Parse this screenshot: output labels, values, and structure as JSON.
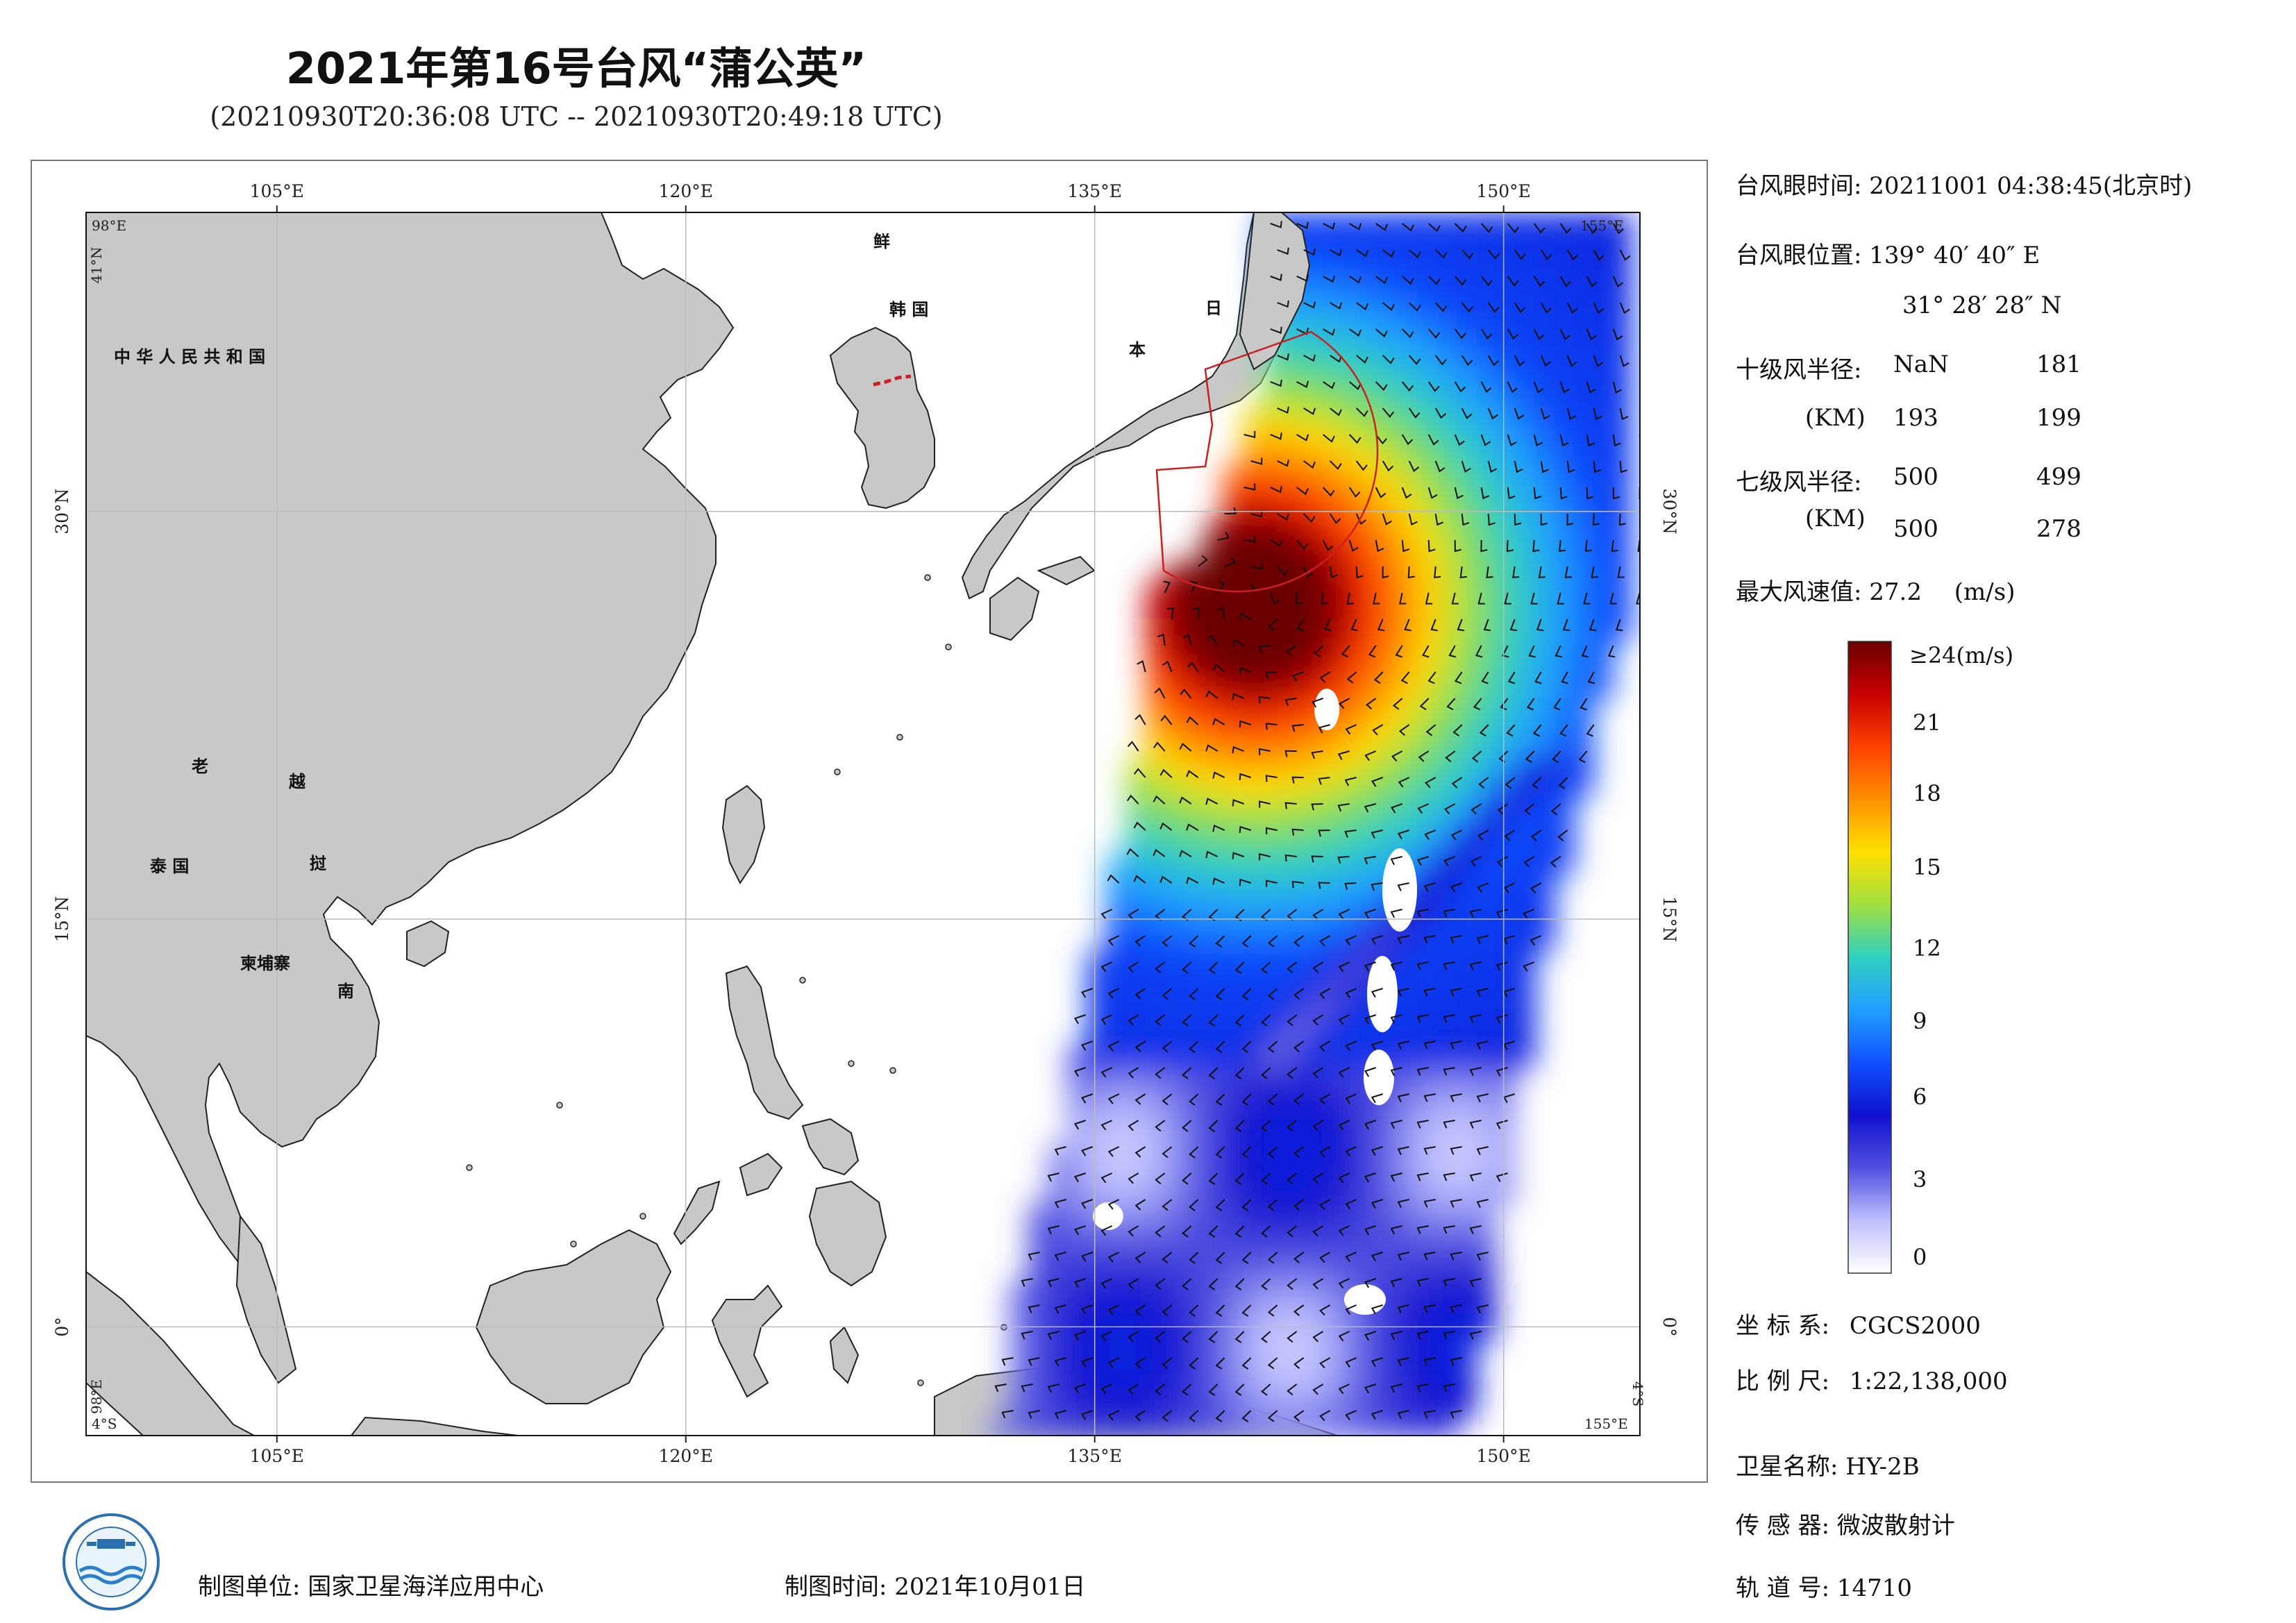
{
  "header": {
    "title": "2021年第16号台风“蒲公英”",
    "subtitle": "(20210930T20:36:08 UTC -- 20210930T20:49:18 UTC)"
  },
  "map": {
    "lon_ticks_top": [
      "105°E",
      "120°E",
      "135°E",
      "150°E"
    ],
    "lon_ticks_bottom": [
      "105°E",
      "120°E",
      "135°E",
      "150°E"
    ],
    "lat_ticks_left": [
      "30°N",
      "15°N",
      "0°"
    ],
    "lat_ticks_right": [
      "30°N",
      "15°N",
      "0°"
    ],
    "corner_labels": {
      "top_left_lon": "98°E",
      "top_left_lat": "41°N",
      "top_right_lon": "155°E",
      "bottom_left_lon": "98°E",
      "bottom_left_lat": "4°S",
      "bottom_right_lon": "155°E",
      "bottom_right_lat": "4°S"
    },
    "country_labels": [
      "中 华 人 民 共 和 国",
      "鲜",
      "韩 国",
      "日",
      "本",
      "老",
      "越",
      "泰 国",
      "挝",
      "柬埔寨",
      "南"
    ],
    "colors": {
      "land": "#c8c8c8",
      "coast": "#222222",
      "typhoon_circle": "#cc2020",
      "grid": "#bbbbbb"
    }
  },
  "info_panel": {
    "eye_time_label": "台风眼时间:",
    "eye_time_value": "20211001 04:38:45(北京时)",
    "eye_pos_label": "台风眼位置:",
    "eye_lon": "139° 40′ 40″ E",
    "eye_lat": "31° 28′ 28″ N",
    "r10_label": "十级风半径:",
    "r10_unit": "(KM)",
    "r10_values": [
      "NaN",
      "181",
      "193",
      "199"
    ],
    "r7_label": "七级风半径:",
    "r7_unit": "(KM)",
    "r7_values": [
      "500",
      "499",
      "500",
      "278"
    ],
    "max_wind_label": "最大风速值:",
    "max_wind_value": "27.2",
    "max_wind_unit": "(m/s)"
  },
  "colorbar": {
    "top_label": "≥24(m/s)",
    "ticks": [
      "21",
      "18",
      "15",
      "12",
      "9",
      "6",
      "3",
      "0"
    ],
    "stops": [
      "#6a0000",
      "#c80000",
      "#ff4000",
      "#ff9000",
      "#ffe000",
      "#a0e040",
      "#30d0c0",
      "#20a0ff",
      "#1050ff",
      "#1010d0",
      "#5050e0",
      "#c0c0ff",
      "#ffffff"
    ]
  },
  "meta": {
    "crs_label": "坐 标 系:",
    "crs_value": "CGCS2000",
    "scale_label": "比 例 尺:",
    "scale_value": "1:22,138,000",
    "satellite_label": "卫星名称:",
    "satellite_value": "HY-2B",
    "sensor_label": "传 感 器:",
    "sensor_value": "微波散射计",
    "orbit_label": "轨 道 号:",
    "orbit_value": "14710"
  },
  "footer": {
    "producer_label": "制图单位:",
    "producer_value": "国家卫星海洋应用中心",
    "date_label": "制图时间:",
    "date_value": "2021年10月01日"
  },
  "logo": {
    "icon": "nsoas-logo-icon"
  }
}
